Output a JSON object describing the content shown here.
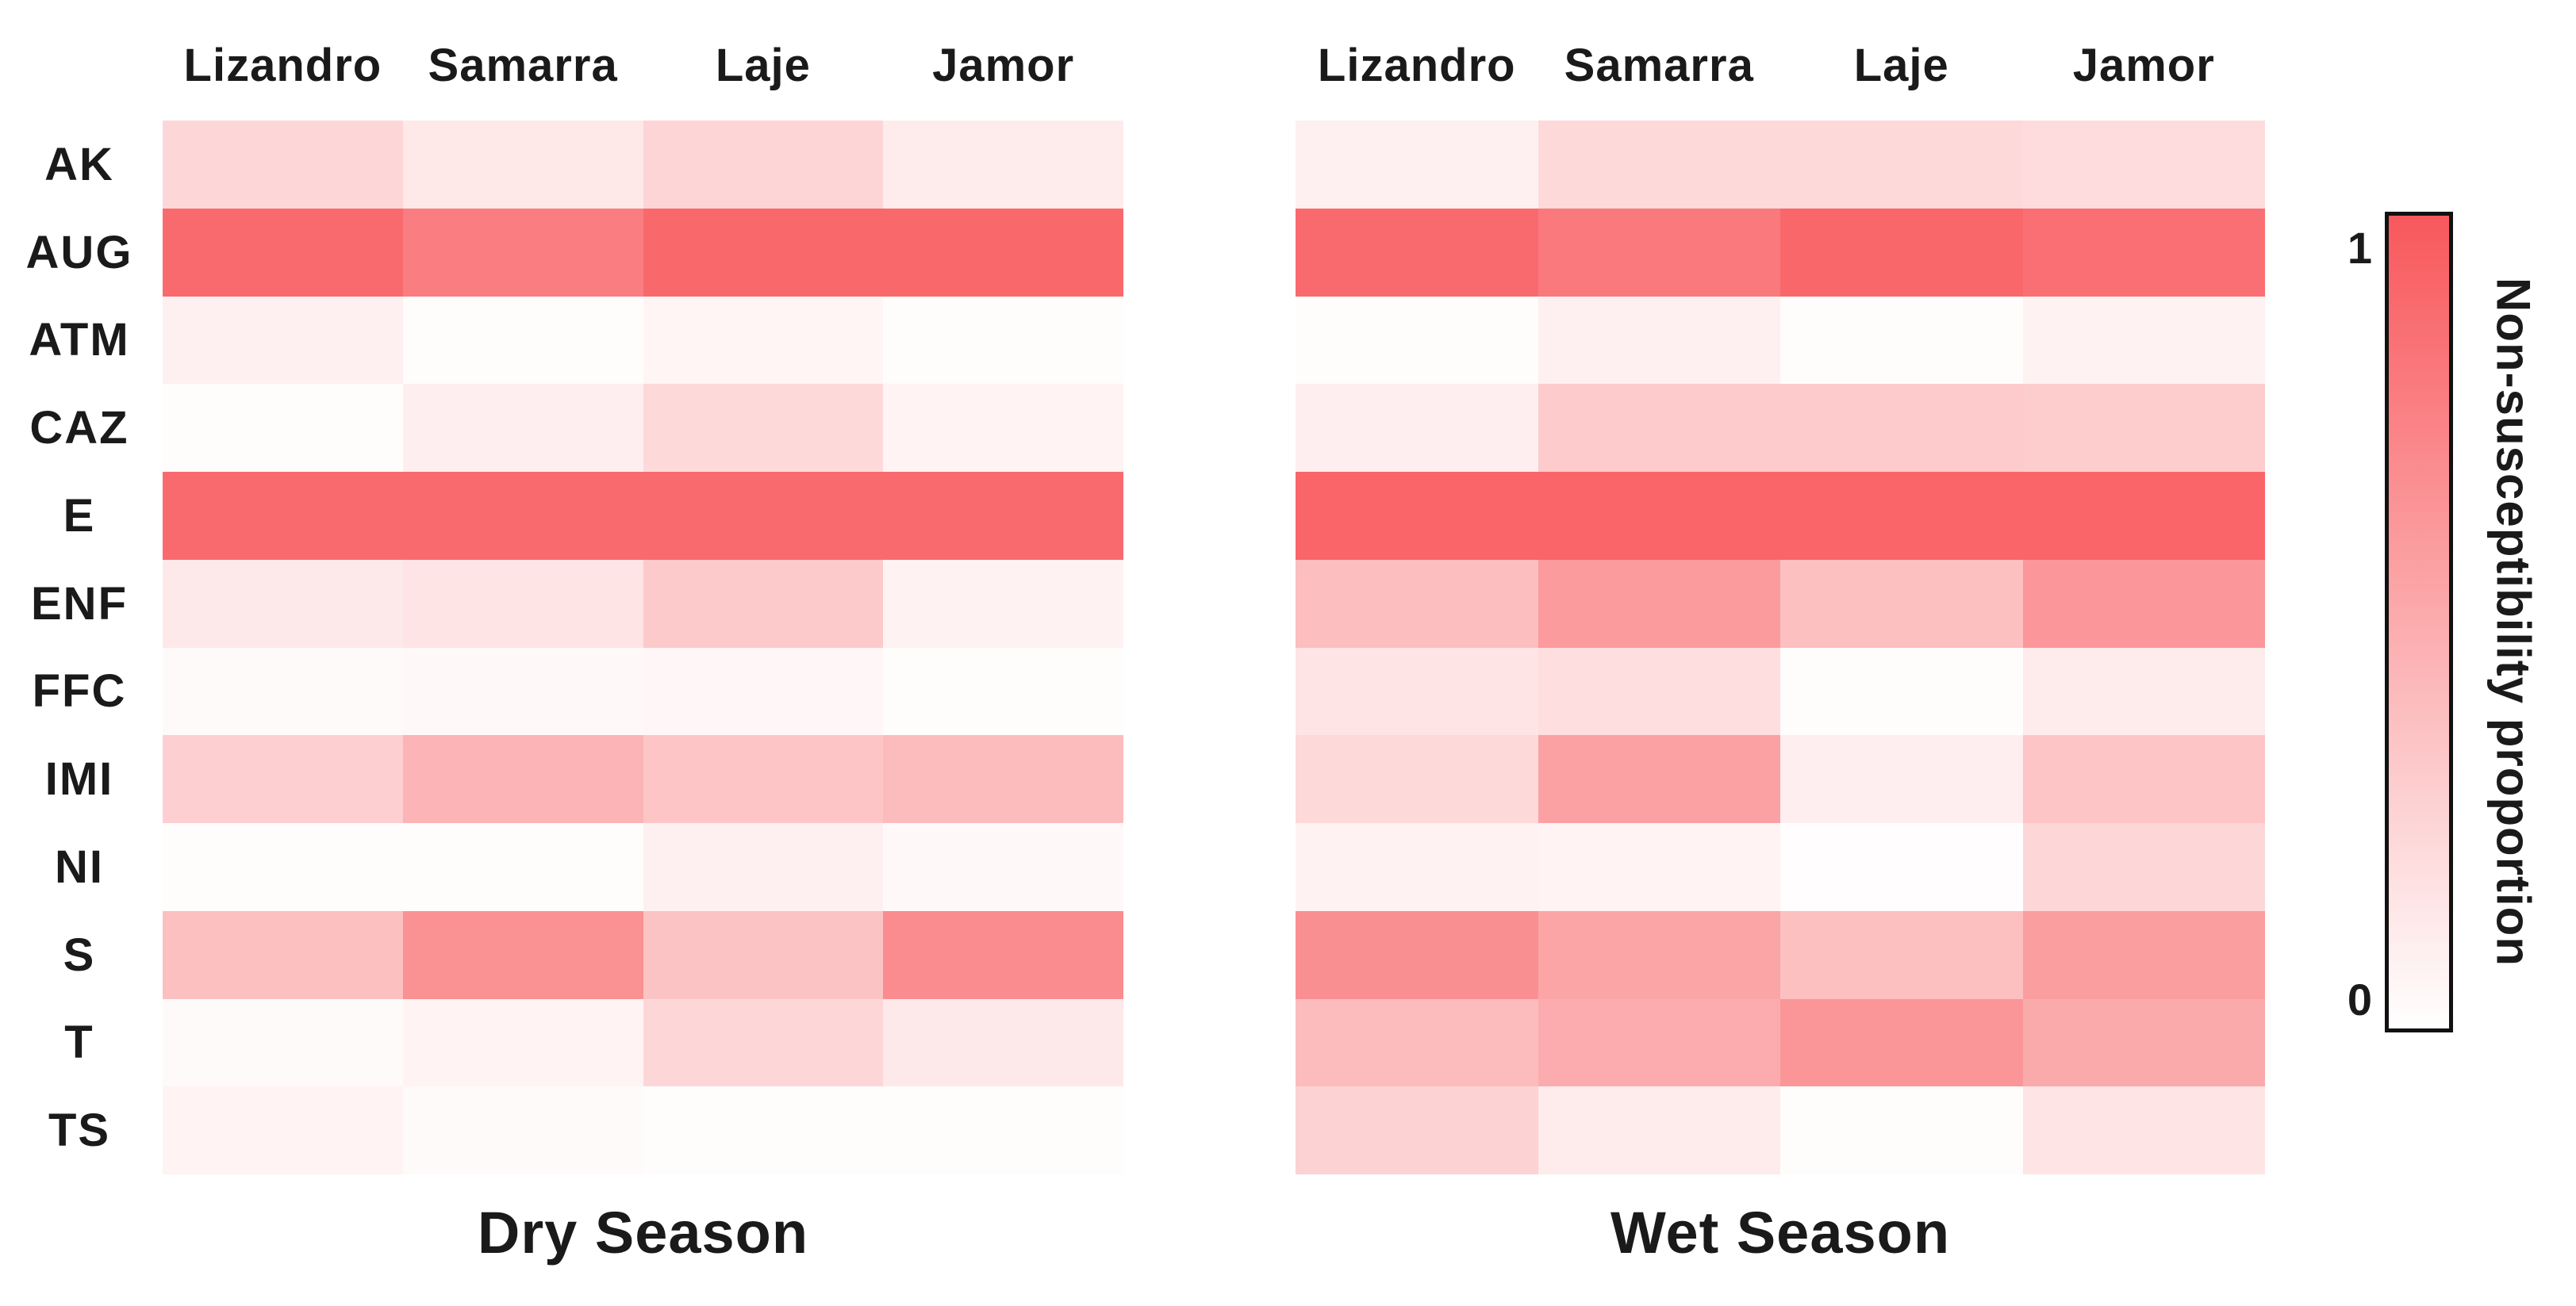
{
  "chart_data": {
    "type": "heatmap",
    "rows": [
      "AK",
      "AUG",
      "ATM",
      "CAZ",
      "E",
      "ENF",
      "FFC",
      "IMI",
      "NI",
      "S",
      "T",
      "TS"
    ],
    "columns": [
      "Lizandro",
      "Samarra",
      "Laje",
      "Jamor"
    ],
    "value_range": [
      0,
      1
    ],
    "grid": false,
    "panels": [
      {
        "title": "Dry Season",
        "values": [
          [
            0.24,
            0.14,
            0.25,
            0.12
          ],
          [
            0.89,
            0.77,
            0.9,
            0.9
          ],
          [
            0.09,
            0.02,
            0.06,
            0.02
          ],
          [
            0.02,
            0.1,
            0.23,
            0.07
          ],
          [
            0.89,
            0.89,
            0.89,
            0.89
          ],
          [
            0.13,
            0.16,
            0.32,
            0.08
          ],
          [
            0.03,
            0.04,
            0.05,
            0.02
          ],
          [
            0.29,
            0.45,
            0.35,
            0.41
          ],
          [
            0.02,
            0.02,
            0.09,
            0.04
          ],
          [
            0.38,
            0.66,
            0.36,
            0.69
          ],
          [
            0.03,
            0.07,
            0.24,
            0.13
          ],
          [
            0.07,
            0.03,
            0.02,
            0.02
          ]
        ]
      },
      {
        "title": "Wet Season",
        "values": [
          [
            0.09,
            0.23,
            0.23,
            0.21
          ],
          [
            0.89,
            0.8,
            0.91,
            0.86
          ],
          [
            0.02,
            0.09,
            0.02,
            0.08
          ],
          [
            0.1,
            0.31,
            0.31,
            0.3
          ],
          [
            0.92,
            0.92,
            0.92,
            0.92
          ],
          [
            0.39,
            0.6,
            0.38,
            0.62
          ],
          [
            0.16,
            0.2,
            0.02,
            0.12
          ],
          [
            0.23,
            0.56,
            0.1,
            0.35
          ],
          [
            0.08,
            0.07,
            0.01,
            0.24
          ],
          [
            0.67,
            0.54,
            0.38,
            0.58
          ],
          [
            0.4,
            0.5,
            0.63,
            0.51
          ],
          [
            0.27,
            0.12,
            0.02,
            0.16
          ]
        ]
      }
    ],
    "colorbar": {
      "label": "Non-susceptibility proportion",
      "tick_top": "1",
      "tick_bottom": "0",
      "min": 0,
      "max": 1,
      "position": "right",
      "color_max": "#F8585C",
      "color_min": "#FFFFFF",
      "border_color": "#111111"
    }
  }
}
